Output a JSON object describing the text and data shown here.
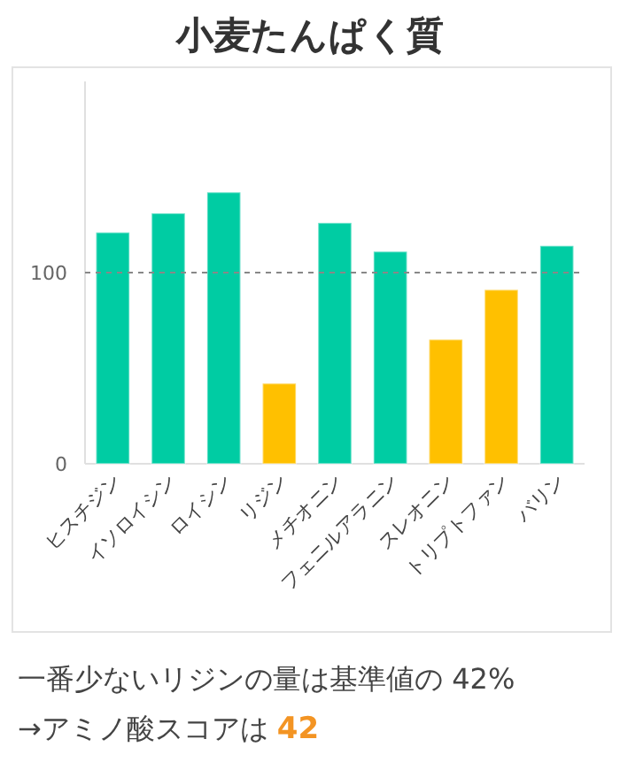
{
  "chart_data": {
    "type": "bar",
    "title": "小麦たんぱく質",
    "categories": [
      "ヒスチジン",
      "イソロイシン",
      "ロイシン",
      "リジン",
      "メチオニン",
      "フェニルアラニン",
      "スレオニン",
      "トリプトファン",
      "バリン"
    ],
    "values": [
      121,
      131,
      142,
      42,
      126,
      111,
      65,
      91,
      114
    ],
    "colors": [
      "#00cca3",
      "#00cca3",
      "#00cca3",
      "#ffc000",
      "#00cca3",
      "#00cca3",
      "#ffc000",
      "#ffc000",
      "#00cca3"
    ],
    "ylim": [
      0,
      200
    ],
    "yticks": [
      0,
      100
    ],
    "ref_lines": [
      {
        "axis": "y",
        "value": 100,
        "color": "#888888",
        "line_style": "dashed"
      }
    ],
    "annotations": [
      "一番少ないリジンの量は基準値の 42%",
      "→アミノ酸スコアは",
      "42"
    ]
  }
}
